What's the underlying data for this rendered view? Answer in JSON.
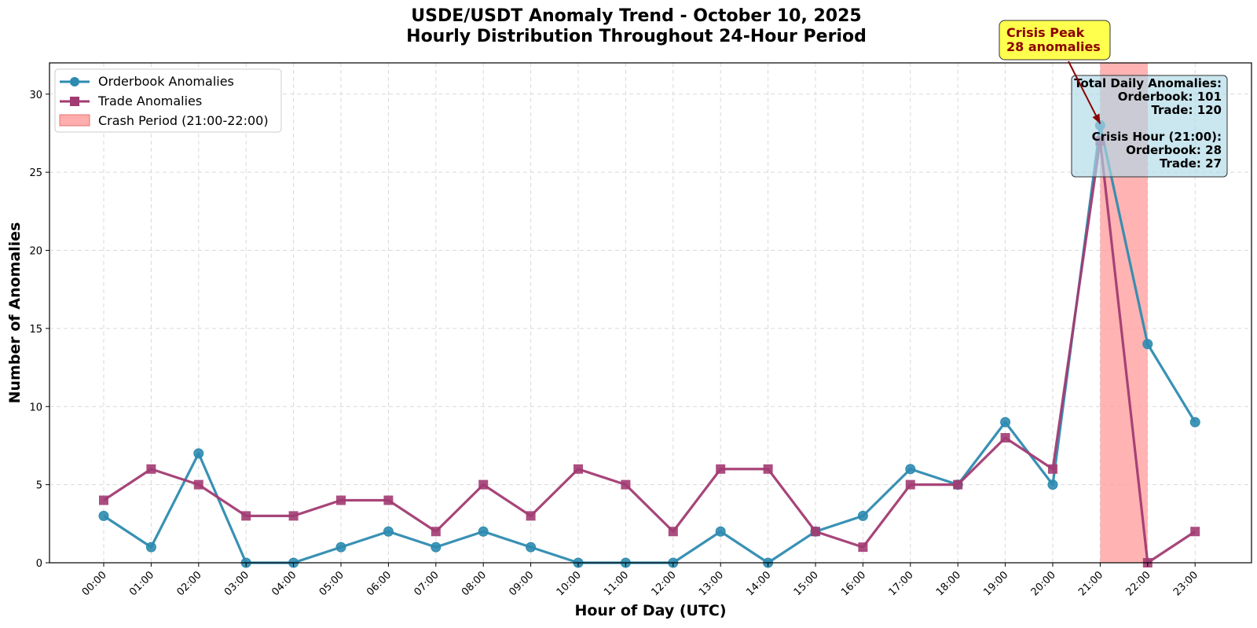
{
  "chart_data": {
    "type": "line",
    "title_line1": "USDE/USDT Anomaly Trend - October 10, 2025",
    "title_line2": "Hourly Distribution Throughout 24-Hour Period",
    "xlabel": "Hour of Day (UTC)",
    "ylabel": "Number of Anomalies",
    "categories": [
      "00:00",
      "01:00",
      "02:00",
      "03:00",
      "04:00",
      "05:00",
      "06:00",
      "07:00",
      "08:00",
      "09:00",
      "10:00",
      "11:00",
      "12:00",
      "13:00",
      "14:00",
      "15:00",
      "16:00",
      "17:00",
      "18:00",
      "19:00",
      "20:00",
      "21:00",
      "22:00",
      "23:00"
    ],
    "ylim": [
      0,
      32
    ],
    "yticks": [
      0,
      5,
      10,
      15,
      20,
      25,
      30
    ],
    "grid": true,
    "series": [
      {
        "name": "Orderbook Anomalies",
        "marker": "circle",
        "color": "#2e8bb0",
        "values": [
          3,
          1,
          7,
          0,
          0,
          1,
          2,
          1,
          2,
          1,
          0,
          0,
          0,
          2,
          0,
          2,
          3,
          6,
          5,
          9,
          5,
          28,
          14,
          9
        ]
      },
      {
        "name": "Trade Anomalies",
        "marker": "square",
        "color": "#a23b72",
        "values": [
          4,
          6,
          5,
          3,
          3,
          4,
          4,
          2,
          5,
          3,
          6,
          5,
          2,
          6,
          6,
          2,
          1,
          5,
          5,
          8,
          6,
          27,
          0,
          2
        ]
      }
    ],
    "shaded_region": {
      "label": "Crash Period (21:00-22:00)",
      "from": "21:00",
      "to": "22:00",
      "color": "#ff9999"
    },
    "legend_position": "upper-left",
    "peak_annotation": {
      "line1": "Crisis Peak",
      "line2": "28 anomalies",
      "target_x": "21:00",
      "target_y": 28
    },
    "stats_box": {
      "lines": [
        "Total Daily Anomalies:",
        "Orderbook: 101",
        "Trade: 120",
        "",
        "Crisis Hour (21:00):",
        "Orderbook: 28",
        "Trade: 27"
      ]
    }
  }
}
